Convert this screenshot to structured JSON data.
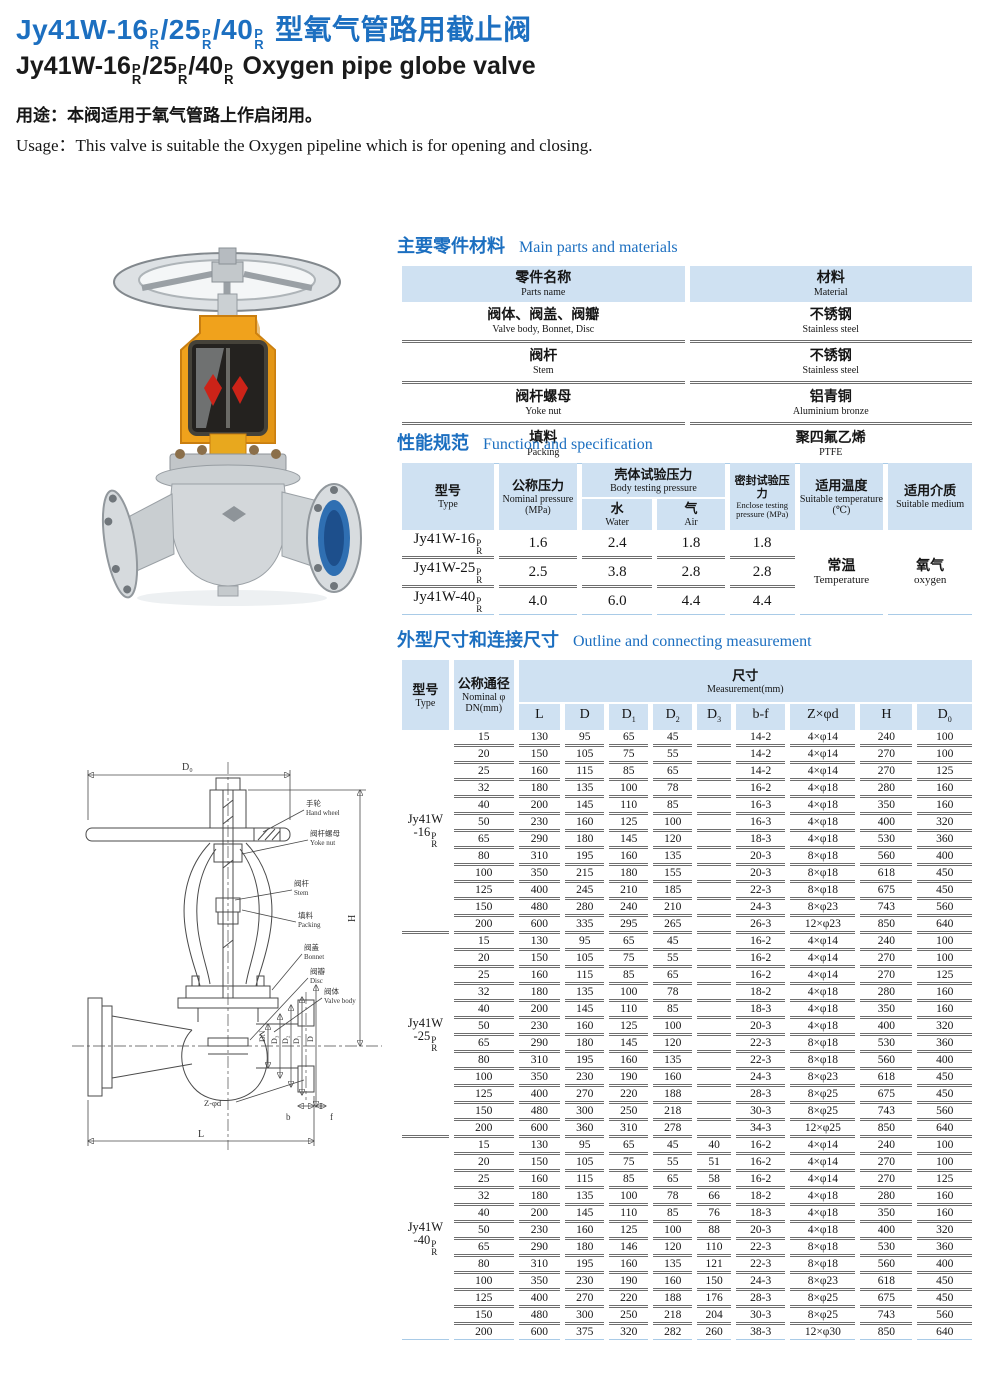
{
  "page": {
    "model_parts": [
      "Jy41W-16",
      "/25",
      "/40"
    ],
    "model_sup": "P",
    "model_sub": "R",
    "title_cn_suffix": "型氧气管路用截止阀",
    "title_en_suffix": "Oxygen pipe globe valve",
    "usage_cn": "用途：本阀适用于氧气管路上作启闭用。",
    "usage_en": "Usage：This valve is suitable the Oxygen pipeline which is for opening and closing."
  },
  "colors": {
    "accent_blue": "#1c6fc0",
    "table_header_bg": "#cfe1f2",
    "rule_gray": "#6e6e6e",
    "rule_light_blue": "#a9cbe7",
    "yoke_yellow": "#f0a21c",
    "indicator_red": "#cc2318",
    "flange_bore_blue": "#2f6fb2"
  },
  "sections": {
    "parts": {
      "title_cn": "主要零件材料",
      "title_en": "Main parts and materials"
    },
    "spec": {
      "title_cn": "性能规范",
      "title_en": "Function and specification"
    },
    "outline": {
      "title_cn": "外型尺寸和连接尺寸",
      "title_en": "Outline and connecting measurement"
    }
  },
  "parts_table": {
    "headers": [
      {
        "cn": "零件名称",
        "en": "Parts name"
      },
      {
        "cn": "材料",
        "en": "Material"
      }
    ],
    "rows": [
      {
        "part_cn": "阀体、阀盖、阀瓣",
        "part_en": "Valve body, Bonnet, Disc",
        "mat_cn": "不锈钢",
        "mat_en": "Stainless steel"
      },
      {
        "part_cn": "阀杆",
        "part_en": "Stem",
        "mat_cn": "不锈钢",
        "mat_en": "Stainless steel"
      },
      {
        "part_cn": "阀杆螺母",
        "part_en": "Yoke nut",
        "mat_cn": "铝青铜",
        "mat_en": "Aluminium bronze"
      },
      {
        "part_cn": "填料",
        "part_en": "Packing",
        "mat_cn": "聚四氟乙烯",
        "mat_en": "PTFE"
      }
    ]
  },
  "spec_table": {
    "headers": {
      "type": {
        "cn": "型号",
        "en": "Type"
      },
      "nominal": {
        "cn": "公称压力",
        "en": "Nominal pressure (MPa)"
      },
      "body": {
        "cn": "壳体试验压力",
        "en": "Body testing pressure"
      },
      "water": {
        "cn": "水",
        "en": "Water"
      },
      "air": {
        "cn": "气",
        "en": "Air"
      },
      "enclose": {
        "cn": "密封试验压力",
        "en": "Enclose testing pressure (MPa)"
      },
      "temp": {
        "cn": "适用温度",
        "en": "Suitable temperature (℃)"
      },
      "medium": {
        "cn": "适用介质",
        "en": "Suitable medium"
      }
    },
    "rows": [
      {
        "type": "Jy41W-16",
        "nominal": "1.6",
        "water": "2.4",
        "air": "1.8",
        "enclose": "1.8"
      },
      {
        "type": "Jy41W-25",
        "nominal": "2.5",
        "water": "3.8",
        "air": "2.8",
        "enclose": "2.8"
      },
      {
        "type": "Jy41W-40",
        "nominal": "4.0",
        "water": "6.0",
        "air": "4.4",
        "enclose": "4.4"
      }
    ],
    "temperature": {
      "cn": "常温",
      "en": "Temperature"
    },
    "medium": {
      "cn": "氧气",
      "en": "oxygen"
    }
  },
  "outline_table": {
    "headers": {
      "type": {
        "cn": "型号",
        "en": "Type"
      },
      "dn": {
        "cn": "公称通径",
        "en": "Nominal φ DN(mm)"
      },
      "measurement": {
        "cn": "尺寸",
        "en": "Measurement(mm)"
      }
    },
    "col_headers": [
      {
        "t": "L"
      },
      {
        "t": "D"
      },
      {
        "t": "D",
        "s": "1"
      },
      {
        "t": "D",
        "s": "2"
      },
      {
        "t": "D",
        "s": "3"
      },
      {
        "t": "b-f"
      },
      {
        "t": "Z×φd"
      },
      {
        "t": "H"
      },
      {
        "t": "D",
        "s": "0"
      }
    ],
    "groups": [
      {
        "label_line1": "Jy41W",
        "label_line2": "-16",
        "rows": [
          [
            "15",
            "130",
            "95",
            "65",
            "45",
            "",
            "14-2",
            "4×φ14",
            "240",
            "100"
          ],
          [
            "20",
            "150",
            "105",
            "75",
            "55",
            "",
            "14-2",
            "4×φ14",
            "270",
            "100"
          ],
          [
            "25",
            "160",
            "115",
            "85",
            "65",
            "",
            "14-2",
            "4×φ14",
            "270",
            "125"
          ],
          [
            "32",
            "180",
            "135",
            "100",
            "78",
            "",
            "16-2",
            "4×φ18",
            "280",
            "160"
          ],
          [
            "40",
            "200",
            "145",
            "110",
            "85",
            "",
            "16-3",
            "4×φ18",
            "350",
            "160"
          ],
          [
            "50",
            "230",
            "160",
            "125",
            "100",
            "",
            "16-3",
            "4×φ18",
            "400",
            "320"
          ],
          [
            "65",
            "290",
            "180",
            "145",
            "120",
            "",
            "18-3",
            "4×φ18",
            "530",
            "360"
          ],
          [
            "80",
            "310",
            "195",
            "160",
            "135",
            "",
            "20-3",
            "8×φ18",
            "560",
            "400"
          ],
          [
            "100",
            "350",
            "215",
            "180",
            "155",
            "",
            "20-3",
            "8×φ18",
            "618",
            "450"
          ],
          [
            "125",
            "400",
            "245",
            "210",
            "185",
            "",
            "22-3",
            "8×φ18",
            "675",
            "450"
          ],
          [
            "150",
            "480",
            "280",
            "240",
            "210",
            "",
            "24-3",
            "8×φ23",
            "743",
            "560"
          ],
          [
            "200",
            "600",
            "335",
            "295",
            "265",
            "",
            "26-3",
            "12×φ23",
            "850",
            "640"
          ]
        ]
      },
      {
        "label_line1": "Jy41W",
        "label_line2": "-25",
        "rows": [
          [
            "15",
            "130",
            "95",
            "65",
            "45",
            "",
            "16-2",
            "4×φ14",
            "240",
            "100"
          ],
          [
            "20",
            "150",
            "105",
            "75",
            "55",
            "",
            "16-2",
            "4×φ14",
            "270",
            "100"
          ],
          [
            "25",
            "160",
            "115",
            "85",
            "65",
            "",
            "16-2",
            "4×φ14",
            "270",
            "125"
          ],
          [
            "32",
            "180",
            "135",
            "100",
            "78",
            "",
            "18-2",
            "4×φ18",
            "280",
            "160"
          ],
          [
            "40",
            "200",
            "145",
            "110",
            "85",
            "",
            "18-3",
            "4×φ18",
            "350",
            "160"
          ],
          [
            "50",
            "230",
            "160",
            "125",
            "100",
            "",
            "20-3",
            "4×φ18",
            "400",
            "320"
          ],
          [
            "65",
            "290",
            "180",
            "145",
            "120",
            "",
            "22-3",
            "8×φ18",
            "530",
            "360"
          ],
          [
            "80",
            "310",
            "195",
            "160",
            "135",
            "",
            "22-3",
            "8×φ18",
            "560",
            "400"
          ],
          [
            "100",
            "350",
            "230",
            "190",
            "160",
            "",
            "24-3",
            "8×φ23",
            "618",
            "450"
          ],
          [
            "125",
            "400",
            "270",
            "220",
            "188",
            "",
            "28-3",
            "8×φ25",
            "675",
            "450"
          ],
          [
            "150",
            "480",
            "300",
            "250",
            "218",
            "",
            "30-3",
            "8×φ25",
            "743",
            "560"
          ],
          [
            "200",
            "600",
            "360",
            "310",
            "278",
            "",
            "34-3",
            "12×φ25",
            "850",
            "640"
          ]
        ]
      },
      {
        "label_line1": "Jy41W",
        "label_line2": "-40",
        "rows": [
          [
            "15",
            "130",
            "95",
            "65",
            "45",
            "40",
            "16-2",
            "4×φ14",
            "240",
            "100"
          ],
          [
            "20",
            "150",
            "105",
            "75",
            "55",
            "51",
            "16-2",
            "4×φ14",
            "270",
            "100"
          ],
          [
            "25",
            "160",
            "115",
            "85",
            "65",
            "58",
            "16-2",
            "4×φ14",
            "270",
            "125"
          ],
          [
            "32",
            "180",
            "135",
            "100",
            "78",
            "66",
            "18-2",
            "4×φ18",
            "280",
            "160"
          ],
          [
            "40",
            "200",
            "145",
            "110",
            "85",
            "76",
            "18-3",
            "4×φ18",
            "350",
            "160"
          ],
          [
            "50",
            "230",
            "160",
            "125",
            "100",
            "88",
            "20-3",
            "4×φ18",
            "400",
            "320"
          ],
          [
            "65",
            "290",
            "180",
            "146",
            "120",
            "110",
            "22-3",
            "8×φ18",
            "530",
            "360"
          ],
          [
            "80",
            "310",
            "195",
            "160",
            "135",
            "121",
            "22-3",
            "8×φ18",
            "560",
            "400"
          ],
          [
            "100",
            "350",
            "230",
            "190",
            "160",
            "150",
            "24-3",
            "8×φ23",
            "618",
            "450"
          ],
          [
            "125",
            "400",
            "270",
            "220",
            "188",
            "176",
            "28-3",
            "8×φ25",
            "675",
            "450"
          ],
          [
            "150",
            "480",
            "300",
            "250",
            "218",
            "204",
            "30-3",
            "8×φ25",
            "743",
            "560"
          ],
          [
            "200",
            "600",
            "375",
            "320",
            "282",
            "260",
            "38-3",
            "12×φ30",
            "850",
            "640"
          ]
        ]
      }
    ]
  },
  "drawing": {
    "dim_top": "D₀",
    "dim_h": "H",
    "dim_l": "L",
    "dim_b": "b",
    "dim_f": "f",
    "dim_zd": "Z-φd",
    "pipe_dims": [
      "DN",
      "D₃",
      "D₂",
      "D₁",
      "D"
    ],
    "callouts": [
      {
        "cn": "手轮",
        "en": "Hand wheel"
      },
      {
        "cn": "阀杆螺母",
        "en": "Yoke nut"
      },
      {
        "cn": "阀杆",
        "en": "Stem"
      },
      {
        "cn": "填料",
        "en": "Packing"
      },
      {
        "cn": "阀盖",
        "en": "Bonnet"
      },
      {
        "cn": "阀瓣",
        "en": "Disc"
      },
      {
        "cn": "阀体",
        "en": "Valve body"
      }
    ]
  }
}
